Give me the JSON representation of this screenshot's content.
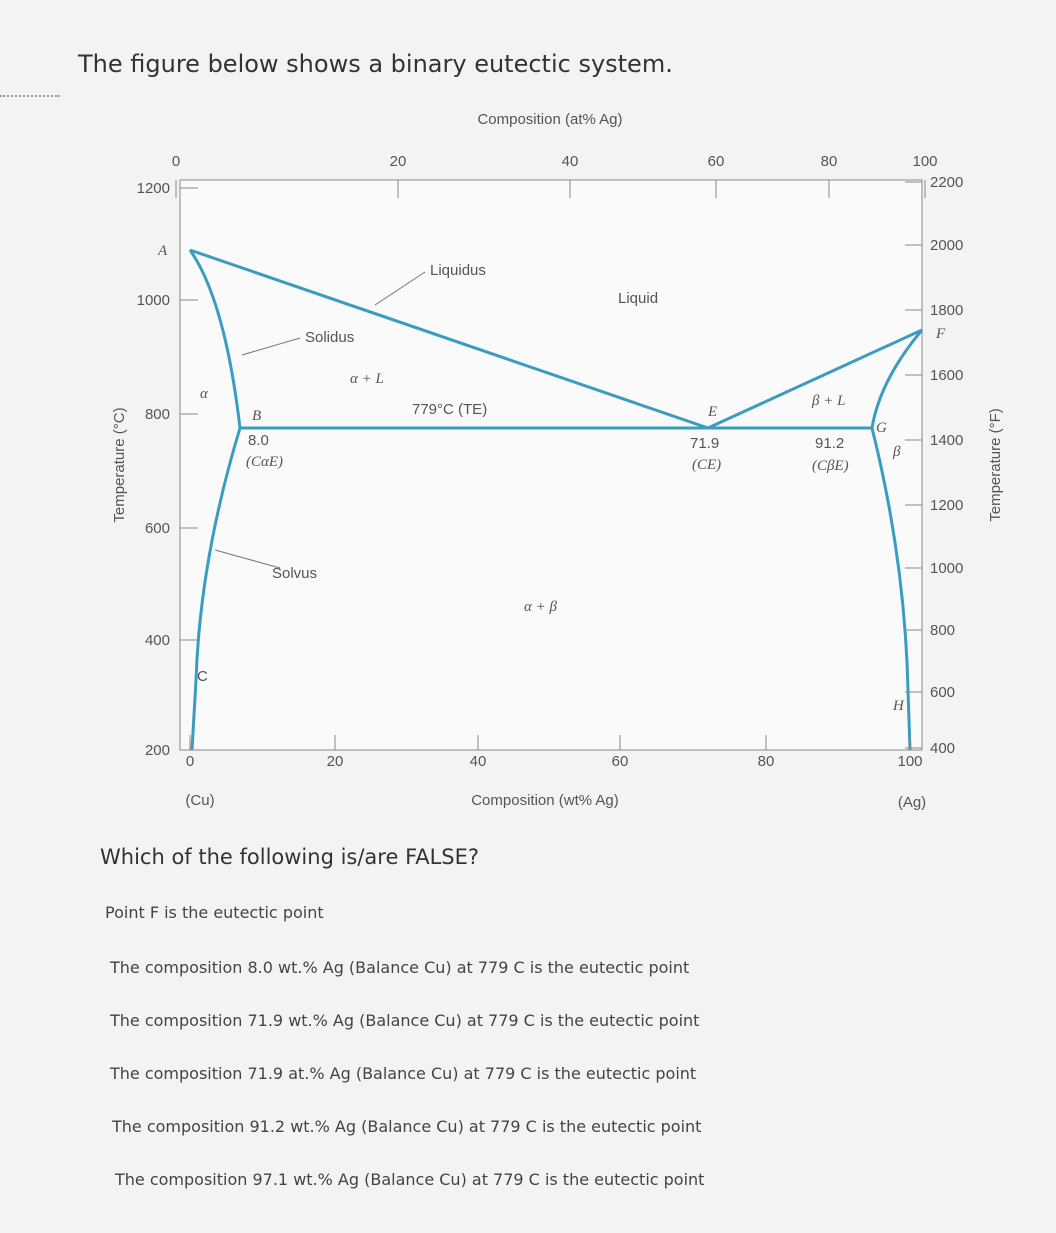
{
  "header": {
    "title": "The figure below shows a binary eutectic system."
  },
  "figure": {
    "top_axis": {
      "label": "Composition (at% Ag)",
      "ticks": [
        0,
        20,
        40,
        60,
        80,
        100
      ]
    },
    "bottom_axis": {
      "label": "Composition (wt% Ag)",
      "ticks": [
        0,
        20,
        40,
        60,
        80,
        100
      ],
      "left_end": "(Cu)",
      "right_end": "(Ag)"
    },
    "left_axis": {
      "label": "Temperature (°C)",
      "ticks": [
        1200,
        1000,
        800,
        600,
        400,
        200
      ]
    },
    "right_axis": {
      "label": "Temperature (°F)",
      "ticks": [
        2200,
        2000,
        1800,
        1600,
        1400,
        1200,
        1000,
        800,
        600,
        400
      ]
    },
    "labels": {
      "liquidus": "Liquidus",
      "liquid": "Liquid",
      "solidus": "Solidus",
      "alpha_l": "α + L",
      "eutectic_temp": "779°C (TE)",
      "point_e": "E",
      "beta_l": "β + L",
      "point_g": "G",
      "beta": "β",
      "point_b": "B",
      "b_value": "8.0",
      "b_sub": "(CαE)",
      "e_value": "71.9",
      "e_sub": "(CE)",
      "g_value": "91.2",
      "g_sub": "(CβE)",
      "solvus": "Solvus",
      "alpha_beta": "α + β",
      "alpha": "α",
      "point_c": "C",
      "point_h": "H",
      "point_a": "A",
      "point_f": "F"
    }
  },
  "question": {
    "prompt": "Which of the following is/are FALSE?",
    "options": [
      "Point F is the eutectic point",
      "The composition 8.0 wt.% Ag (Balance Cu) at 779 C is the eutectic point",
      "The composition 71.9 wt.% Ag (Balance Cu) at 779 C is the eutectic point",
      "The composition 71.9 at.% Ag (Balance Cu) at 779 C is the eutectic point",
      "The composition 91.2 wt.% Ag (Balance Cu) at 779 C is the eutectic point",
      "The composition 97.1 wt.% Ag (Balance Cu) at 779 C is the eutectic point"
    ]
  }
}
